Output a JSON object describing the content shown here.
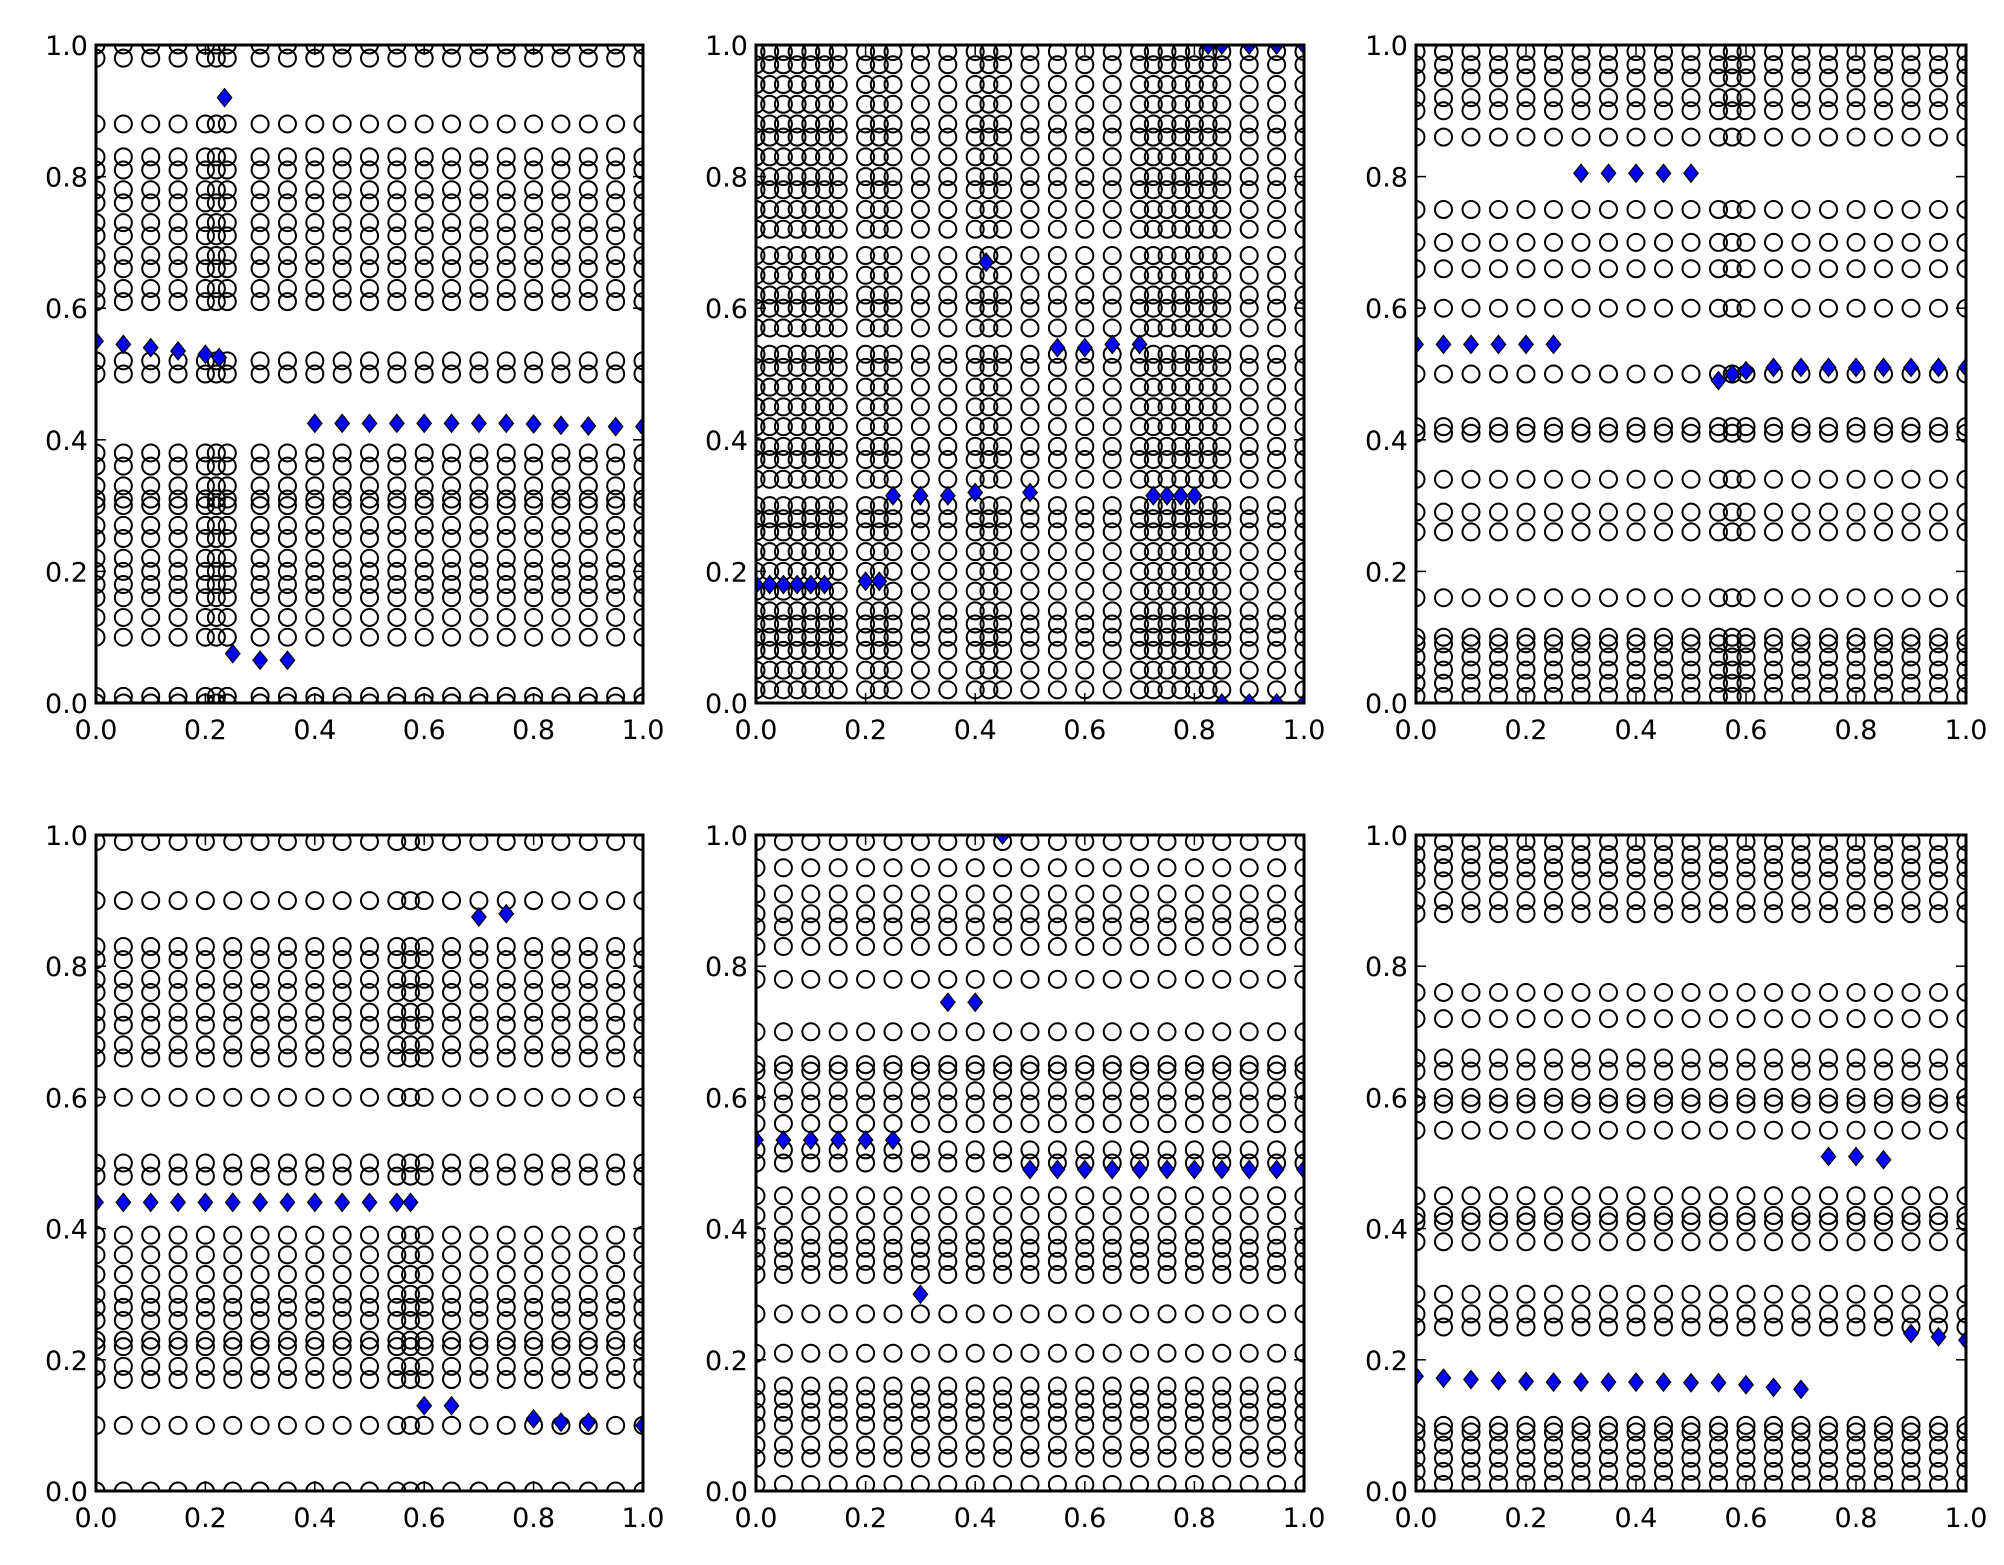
{
  "chart_data": {
    "type": "scatter",
    "layout": "2x3 grid",
    "colors": {
      "diamond": "#0000ff",
      "circle_edge": "#000000"
    },
    "panels": [
      {
        "xlim": [
          0,
          1
        ],
        "ylim": [
          0,
          1
        ],
        "xticks": [
          "0.0",
          "0.2",
          "0.4",
          "0.6",
          "0.8",
          "1.0"
        ],
        "yticks": [
          "0.0",
          "0.2",
          "0.4",
          "0.6",
          "0.8",
          "1.0"
        ],
        "circle_columns": [
          0,
          0.05,
          0.1,
          0.15,
          0.2,
          0.22,
          0.24,
          0.3,
          0.35,
          0.4,
          0.45,
          0.5,
          0.55,
          0.6,
          0.65,
          0.7,
          0.75,
          0.8,
          0.85,
          0.9,
          0.95,
          1.0
        ],
        "circle_rows": [
          0,
          0.01,
          0.1,
          0.13,
          0.16,
          0.18,
          0.2,
          0.22,
          0.25,
          0.27,
          0.3,
          0.31,
          0.33,
          0.36,
          0.38,
          0.5,
          0.52,
          0.61,
          0.63,
          0.66,
          0.68,
          0.71,
          0.73,
          0.76,
          0.78,
          0.81,
          0.83,
          0.88,
          0.98,
          1.0
        ],
        "diamonds": [
          [
            0,
            0.55
          ],
          [
            0.05,
            0.545
          ],
          [
            0.1,
            0.54
          ],
          [
            0.15,
            0.535
          ],
          [
            0.2,
            0.53
          ],
          [
            0.225,
            0.525
          ],
          [
            0.235,
            0.92
          ],
          [
            0.25,
            0.075
          ],
          [
            0.3,
            0.065
          ],
          [
            0.35,
            0.065
          ],
          [
            0.4,
            0.425
          ],
          [
            0.45,
            0.425
          ],
          [
            0.5,
            0.425
          ],
          [
            0.55,
            0.425
          ],
          [
            0.6,
            0.425
          ],
          [
            0.65,
            0.425
          ],
          [
            0.7,
            0.425
          ],
          [
            0.75,
            0.425
          ],
          [
            0.8,
            0.424
          ],
          [
            0.85,
            0.422
          ],
          [
            0.9,
            0.421
          ],
          [
            0.95,
            0.42
          ],
          [
            1.0,
            0.42
          ]
        ]
      },
      {
        "xlim": [
          0,
          1
        ],
        "ylim": [
          0,
          1
        ],
        "xticks": [
          "0.0",
          "0.2",
          "0.4",
          "0.6",
          "0.8",
          "1.0"
        ],
        "yticks": [
          "0.0",
          "0.2",
          "0.4",
          "0.6",
          "0.8",
          "1.0"
        ],
        "circle_columns": [
          0,
          0.025,
          0.05,
          0.075,
          0.1,
          0.125,
          0.15,
          0.2,
          0.225,
          0.25,
          0.3,
          0.35,
          0.4,
          0.425,
          0.45,
          0.5,
          0.55,
          0.6,
          0.65,
          0.7,
          0.725,
          0.75,
          0.775,
          0.8,
          0.825,
          0.85,
          0.9,
          0.95,
          1.0
        ],
        "circle_rows": [
          0.02,
          0.05,
          0.08,
          0.1,
          0.12,
          0.14,
          0.17,
          0.2,
          0.23,
          0.26,
          0.28,
          0.3,
          0.34,
          0.37,
          0.39,
          0.42,
          0.45,
          0.48,
          0.51,
          0.53,
          0.57,
          0.6,
          0.62,
          0.65,
          0.68,
          0.72,
          0.75,
          0.78,
          0.8,
          0.83,
          0.86,
          0.88,
          0.91,
          0.94,
          0.97,
          0.99
        ],
        "diamonds": [
          [
            0,
            0.18
          ],
          [
            0.025,
            0.18
          ],
          [
            0.05,
            0.18
          ],
          [
            0.075,
            0.18
          ],
          [
            0.1,
            0.18
          ],
          [
            0.125,
            0.18
          ],
          [
            0.2,
            0.185
          ],
          [
            0.225,
            0.185
          ],
          [
            0.25,
            0.315
          ],
          [
            0.3,
            0.315
          ],
          [
            0.35,
            0.315
          ],
          [
            0.4,
            0.32
          ],
          [
            0.42,
            0.67
          ],
          [
            0.5,
            0.32
          ],
          [
            0.55,
            0.54
          ],
          [
            0.6,
            0.54
          ],
          [
            0.65,
            0.545
          ],
          [
            0.7,
            0.545
          ],
          [
            0.725,
            0.315
          ],
          [
            0.75,
            0.315
          ],
          [
            0.775,
            0.315
          ],
          [
            0.8,
            0.315
          ],
          [
            0.825,
            1.0
          ],
          [
            0.85,
            1.0
          ],
          [
            0.9,
            1.0
          ],
          [
            0.95,
            1.0
          ],
          [
            1.0,
            1.0
          ],
          [
            0.85,
            0.0
          ],
          [
            0.9,
            0.0
          ],
          [
            0.95,
            0.0
          ],
          [
            1.0,
            0.0
          ]
        ]
      },
      {
        "xlim": [
          0,
          1
        ],
        "ylim": [
          0,
          1
        ],
        "xticks": [
          "0.0",
          "0.2",
          "0.4",
          "0.6",
          "0.8",
          "1.0"
        ],
        "yticks": [
          "0.0",
          "0.2",
          "0.4",
          "0.6",
          "0.8",
          "1.0"
        ],
        "circle_columns": [
          0,
          0.05,
          0.1,
          0.15,
          0.2,
          0.25,
          0.3,
          0.35,
          0.4,
          0.45,
          0.5,
          0.55,
          0.575,
          0.6,
          0.65,
          0.7,
          0.75,
          0.8,
          0.85,
          0.9,
          0.95,
          1.0
        ],
        "circle_rows": [
          0.01,
          0.03,
          0.05,
          0.07,
          0.09,
          0.1,
          0.16,
          0.26,
          0.29,
          0.34,
          0.41,
          0.42,
          0.5,
          0.6,
          0.66,
          0.7,
          0.75,
          0.86,
          0.9,
          0.92,
          0.95,
          0.97,
          0.99
        ],
        "diamonds": [
          [
            0,
            0.545
          ],
          [
            0.05,
            0.545
          ],
          [
            0.1,
            0.545
          ],
          [
            0.15,
            0.545
          ],
          [
            0.2,
            0.545
          ],
          [
            0.25,
            0.545
          ],
          [
            0.3,
            0.805
          ],
          [
            0.35,
            0.805
          ],
          [
            0.4,
            0.805
          ],
          [
            0.45,
            0.805
          ],
          [
            0.5,
            0.805
          ],
          [
            0.55,
            0.49
          ],
          [
            0.575,
            0.5
          ],
          [
            0.6,
            0.505
          ],
          [
            0.65,
            0.51
          ],
          [
            0.7,
            0.51
          ],
          [
            0.75,
            0.51
          ],
          [
            0.8,
            0.51
          ],
          [
            0.85,
            0.51
          ],
          [
            0.9,
            0.51
          ],
          [
            0.95,
            0.51
          ],
          [
            1.0,
            0.51
          ]
        ]
      },
      {
        "xlim": [
          0,
          1
        ],
        "ylim": [
          0,
          1
        ],
        "xticks": [
          "0.0",
          "0.2",
          "0.4",
          "0.6",
          "0.8",
          "1.0"
        ],
        "yticks": [
          "0.0",
          "0.2",
          "0.4",
          "0.6",
          "0.8",
          "1.0"
        ],
        "circle_columns": [
          0,
          0.05,
          0.1,
          0.15,
          0.2,
          0.25,
          0.3,
          0.35,
          0.4,
          0.45,
          0.5,
          0.55,
          0.575,
          0.6,
          0.65,
          0.7,
          0.75,
          0.8,
          0.85,
          0.9,
          0.95,
          1.0
        ],
        "circle_rows": [
          0,
          0.1,
          0.17,
          0.19,
          0.22,
          0.23,
          0.26,
          0.28,
          0.3,
          0.33,
          0.36,
          0.39,
          0.48,
          0.5,
          0.6,
          0.66,
          0.68,
          0.71,
          0.73,
          0.76,
          0.78,
          0.81,
          0.83,
          0.9,
          0.99
        ],
        "diamonds": [
          [
            0,
            0.44
          ],
          [
            0.05,
            0.44
          ],
          [
            0.1,
            0.44
          ],
          [
            0.15,
            0.44
          ],
          [
            0.2,
            0.44
          ],
          [
            0.25,
            0.44
          ],
          [
            0.3,
            0.44
          ],
          [
            0.35,
            0.44
          ],
          [
            0.4,
            0.44
          ],
          [
            0.45,
            0.44
          ],
          [
            0.5,
            0.44
          ],
          [
            0.55,
            0.44
          ],
          [
            0.575,
            0.44
          ],
          [
            0.6,
            0.13
          ],
          [
            0.65,
            0.13
          ],
          [
            0.7,
            0.875
          ],
          [
            0.75,
            0.88
          ],
          [
            0.8,
            0.11
          ],
          [
            0.85,
            0.105
          ],
          [
            0.9,
            0.105
          ],
          [
            1.0,
            0.1
          ]
        ]
      },
      {
        "xlim": [
          0,
          1
        ],
        "ylim": [
          0,
          1
        ],
        "xticks": [
          "0.0",
          "0.2",
          "0.4",
          "0.6",
          "0.8",
          "1.0"
        ],
        "yticks": [
          "0.0",
          "0.2",
          "0.4",
          "0.6",
          "0.8",
          "1.0"
        ],
        "circle_columns": [
          0,
          0.05,
          0.1,
          0.15,
          0.2,
          0.25,
          0.3,
          0.35,
          0.4,
          0.45,
          0.5,
          0.55,
          0.6,
          0.65,
          0.7,
          0.75,
          0.8,
          0.85,
          0.9,
          0.95,
          1.0
        ],
        "circle_rows": [
          0.01,
          0.05,
          0.07,
          0.1,
          0.12,
          0.14,
          0.16,
          0.21,
          0.27,
          0.33,
          0.35,
          0.37,
          0.39,
          0.42,
          0.45,
          0.5,
          0.52,
          0.56,
          0.59,
          0.61,
          0.64,
          0.65,
          0.7,
          0.78,
          0.83,
          0.86,
          0.88,
          0.91,
          0.95,
          0.99
        ],
        "diamonds": [
          [
            0,
            0.535
          ],
          [
            0.05,
            0.535
          ],
          [
            0.1,
            0.535
          ],
          [
            0.15,
            0.535
          ],
          [
            0.2,
            0.535
          ],
          [
            0.25,
            0.535
          ],
          [
            0.3,
            0.3
          ],
          [
            0.35,
            0.745
          ],
          [
            0.4,
            0.745
          ],
          [
            0.45,
            1.0
          ],
          [
            0.5,
            0.49
          ],
          [
            0.55,
            0.49
          ],
          [
            0.6,
            0.49
          ],
          [
            0.65,
            0.49
          ],
          [
            0.7,
            0.49
          ],
          [
            0.75,
            0.49
          ],
          [
            0.8,
            0.49
          ],
          [
            0.85,
            0.49
          ],
          [
            0.9,
            0.49
          ],
          [
            0.95,
            0.49
          ],
          [
            1.0,
            0.49
          ]
        ]
      },
      {
        "xlim": [
          0,
          1
        ],
        "ylim": [
          0,
          1
        ],
        "xticks": [
          "0.0",
          "0.2",
          "0.4",
          "0.6",
          "0.8",
          "1.0"
        ],
        "yticks": [
          "0.0",
          "0.2",
          "0.4",
          "0.6",
          "0.8",
          "1.0"
        ],
        "circle_columns": [
          0,
          0.05,
          0.1,
          0.15,
          0.2,
          0.25,
          0.3,
          0.35,
          0.4,
          0.45,
          0.5,
          0.55,
          0.6,
          0.65,
          0.7,
          0.75,
          0.8,
          0.85,
          0.9,
          0.95,
          1.0
        ],
        "circle_rows": [
          0.01,
          0.03,
          0.05,
          0.07,
          0.09,
          0.1,
          0.25,
          0.27,
          0.3,
          0.38,
          0.41,
          0.42,
          0.45,
          0.55,
          0.59,
          0.6,
          0.64,
          0.66,
          0.72,
          0.76,
          0.88,
          0.9,
          0.93,
          0.95,
          0.97,
          0.99
        ],
        "diamonds": [
          [
            0,
            0.175
          ],
          [
            0.05,
            0.172
          ],
          [
            0.1,
            0.17
          ],
          [
            0.15,
            0.168
          ],
          [
            0.2,
            0.167
          ],
          [
            0.25,
            0.166
          ],
          [
            0.3,
            0.166
          ],
          [
            0.35,
            0.166
          ],
          [
            0.4,
            0.166
          ],
          [
            0.45,
            0.166
          ],
          [
            0.5,
            0.165
          ],
          [
            0.55,
            0.165
          ],
          [
            0.6,
            0.162
          ],
          [
            0.65,
            0.158
          ],
          [
            0.7,
            0.155
          ],
          [
            0.75,
            0.51
          ],
          [
            0.8,
            0.51
          ],
          [
            0.85,
            0.505
          ],
          [
            0.9,
            0.24
          ],
          [
            0.95,
            0.235
          ],
          [
            1.0,
            0.23
          ]
        ]
      }
    ]
  }
}
